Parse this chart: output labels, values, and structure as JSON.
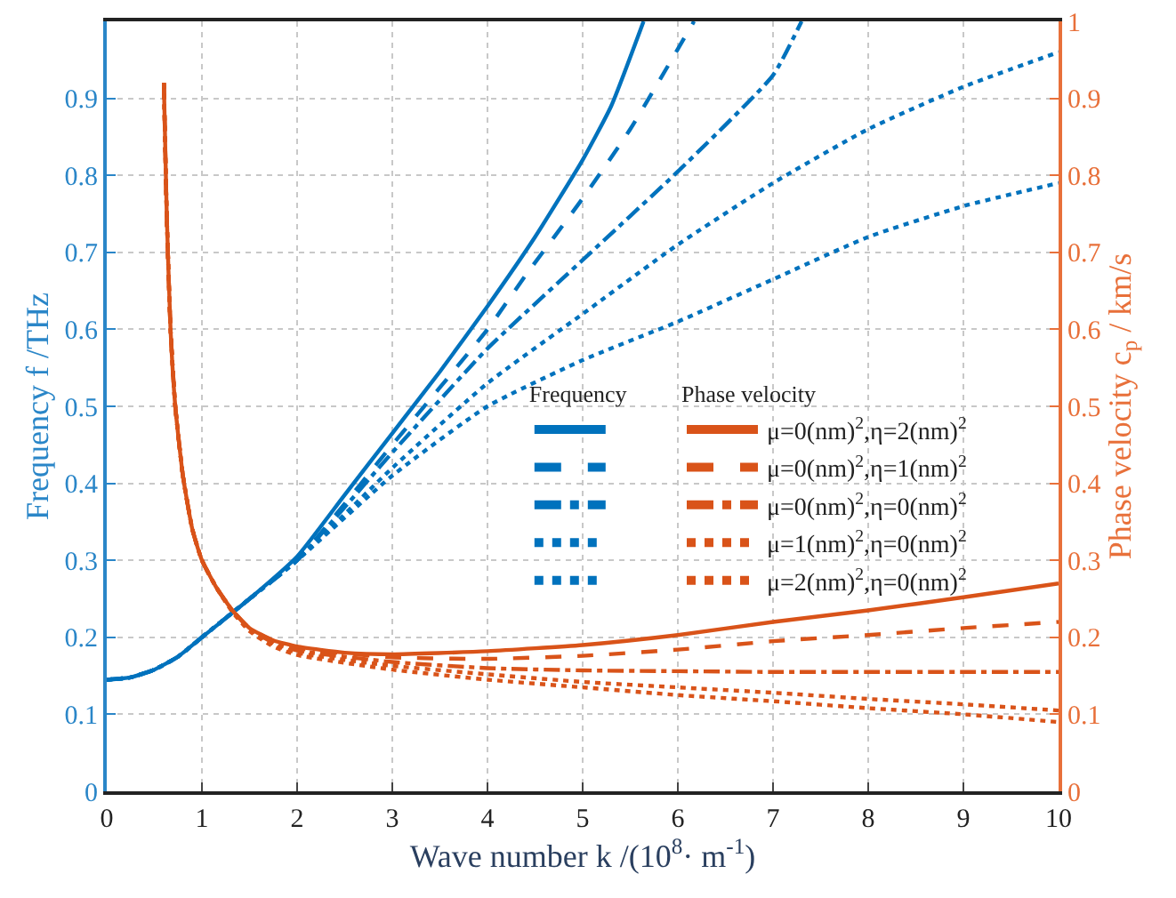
{
  "chart_data": {
    "type": "line",
    "xlabel": "Wave number k /(10$^{8}$· m$^{-1}$)",
    "ylabel": "Frequency f /THz",
    "y2label": "Phase velocity c$_{p}$ / km/s",
    "xlim": [
      0,
      10
    ],
    "xticks": [
      0,
      1,
      2,
      3,
      4,
      5,
      6,
      7,
      8,
      9,
      10
    ],
    "ylim": [
      0,
      1
    ],
    "yticks": [
      0,
      0.1,
      0.2,
      0.3,
      0.4,
      0.5,
      0.6,
      0.7,
      0.8,
      0.9
    ],
    "y2lim": [
      0,
      1
    ],
    "y2ticks": [
      0,
      0.1,
      0.2,
      0.3,
      0.4,
      0.5,
      0.6,
      0.7,
      0.8,
      0.9,
      1
    ],
    "grid": true,
    "legend": "right",
    "marker": "none",
    "annotations": [
      "Frequency",
      "Phase velocity"
    ],
    "series": [
      {
        "color": "#0072bd",
        "line_style": "solid",
        "x": [
          0,
          0.25,
          0.5,
          0.75,
          1,
          1.5,
          2,
          2.5,
          3,
          3.5,
          4,
          4.5,
          5,
          5.3,
          5.64
        ],
        "values": [
          0.145,
          0.148,
          0.158,
          0.175,
          0.2,
          0.25,
          0.305,
          0.385,
          0.465,
          0.545,
          0.63,
          0.72,
          0.82,
          0.89,
          1.0
        ]
      },
      {
        "color": "#0072bd",
        "line_style": "dashed",
        "x": [
          0,
          0.25,
          0.5,
          0.75,
          1,
          1.5,
          2,
          3,
          4,
          4.4,
          5,
          5.5,
          6.17
        ],
        "values": [
          0.145,
          0.148,
          0.158,
          0.175,
          0.2,
          0.25,
          0.3,
          0.45,
          0.6,
          0.67,
          0.77,
          0.86,
          1.0
        ]
      },
      {
        "color": "#0072bd",
        "line_style": "dashdot",
        "x": [
          0,
          0.25,
          0.5,
          0.75,
          1,
          1.5,
          2,
          3,
          4,
          5,
          6,
          7,
          7.3
        ],
        "values": [
          0.145,
          0.148,
          0.158,
          0.175,
          0.2,
          0.25,
          0.3,
          0.44,
          0.575,
          0.69,
          0.805,
          0.93,
          1.0
        ]
      },
      {
        "color": "#0072bd",
        "line_style": "dotted",
        "x": [
          0,
          0.25,
          0.5,
          0.75,
          1,
          1.5,
          2,
          3,
          4,
          5,
          6,
          7,
          8,
          9,
          10
        ],
        "values": [
          0.145,
          0.148,
          0.158,
          0.175,
          0.2,
          0.25,
          0.3,
          0.42,
          0.53,
          0.62,
          0.71,
          0.79,
          0.86,
          0.915,
          0.96
        ]
      },
      {
        "color": "#0072bd",
        "line_style": "dotted",
        "x": [
          0,
          0.25,
          0.5,
          0.75,
          1,
          1.5,
          2,
          3,
          4,
          5,
          6,
          7,
          8,
          9,
          10
        ],
        "values": [
          0.145,
          0.148,
          0.158,
          0.175,
          0.2,
          0.25,
          0.3,
          0.41,
          0.5,
          0.56,
          0.61,
          0.665,
          0.72,
          0.76,
          0.79
        ]
      },
      {
        "name": "μ=0(nm)$^{2}$,η=2(nm)$^{2}$",
        "color": "#d95319",
        "line_style": "solid",
        "axis": "y2",
        "x": [
          0.6,
          0.63,
          0.67,
          0.72,
          0.8,
          0.9,
          1,
          1.15,
          1.32,
          1.5,
          1.75,
          2,
          2.5,
          3,
          4,
          5,
          6,
          7,
          8,
          9,
          10
        ],
        "values": [
          0.92,
          0.75,
          0.6,
          0.5,
          0.41,
          0.34,
          0.3,
          0.265,
          0.235,
          0.212,
          0.196,
          0.188,
          0.18,
          0.178,
          0.182,
          0.19,
          0.203,
          0.22,
          0.235,
          0.252,
          0.27
        ]
      },
      {
        "name": "μ=0(nm)$^{2}$,η=1(nm)$^{2}$",
        "color": "#d95319",
        "line_style": "dashed",
        "axis": "y2",
        "x": [
          0.6,
          0.63,
          0.67,
          0.72,
          0.8,
          0.9,
          1,
          1.15,
          1.32,
          1.5,
          1.75,
          2,
          3,
          4,
          5,
          6,
          7,
          8,
          9,
          10
        ],
        "values": [
          0.92,
          0.75,
          0.6,
          0.5,
          0.41,
          0.34,
          0.3,
          0.265,
          0.235,
          0.212,
          0.195,
          0.186,
          0.174,
          0.172,
          0.176,
          0.184,
          0.195,
          0.203,
          0.212,
          0.22
        ]
      },
      {
        "name": "μ=0(nm)$^{2}$,η=0(nm)$^{2}$",
        "color": "#d95319",
        "line_style": "dashdot",
        "axis": "y2",
        "x": [
          0.6,
          0.63,
          0.67,
          0.72,
          0.8,
          0.9,
          1,
          1.15,
          1.32,
          1.5,
          1.75,
          2,
          3,
          4,
          5,
          6,
          7,
          8,
          9,
          10
        ],
        "values": [
          0.92,
          0.75,
          0.6,
          0.5,
          0.41,
          0.34,
          0.3,
          0.265,
          0.235,
          0.211,
          0.193,
          0.183,
          0.168,
          0.16,
          0.157,
          0.156,
          0.155,
          0.155,
          0.155,
          0.155
        ]
      },
      {
        "name": "μ=1(nm)$^{2}$,η=0(nm)$^{2}$",
        "color": "#d95319",
        "line_style": "dotted",
        "axis": "y2",
        "x": [
          0.6,
          0.63,
          0.67,
          0.72,
          0.8,
          0.9,
          1,
          1.15,
          1.32,
          1.5,
          1.75,
          2,
          3,
          4,
          5,
          6,
          7,
          8,
          9,
          10
        ],
        "values": [
          0.92,
          0.75,
          0.6,
          0.5,
          0.41,
          0.34,
          0.3,
          0.265,
          0.234,
          0.21,
          0.191,
          0.18,
          0.163,
          0.152,
          0.142,
          0.135,
          0.128,
          0.12,
          0.113,
          0.105
        ]
      },
      {
        "name": "μ=2(nm)$^{2}$,η=0(nm)$^{2}$",
        "color": "#d95319",
        "line_style": "dotted",
        "axis": "y2",
        "x": [
          0.6,
          0.63,
          0.67,
          0.72,
          0.8,
          0.9,
          1,
          1.15,
          1.32,
          1.5,
          1.75,
          2,
          3,
          4,
          5,
          6,
          7,
          8,
          9,
          10
        ],
        "values": [
          0.92,
          0.75,
          0.6,
          0.5,
          0.41,
          0.34,
          0.3,
          0.265,
          0.233,
          0.208,
          0.188,
          0.177,
          0.158,
          0.145,
          0.135,
          0.125,
          0.117,
          0.108,
          0.1,
          0.09
        ]
      }
    ]
  }
}
